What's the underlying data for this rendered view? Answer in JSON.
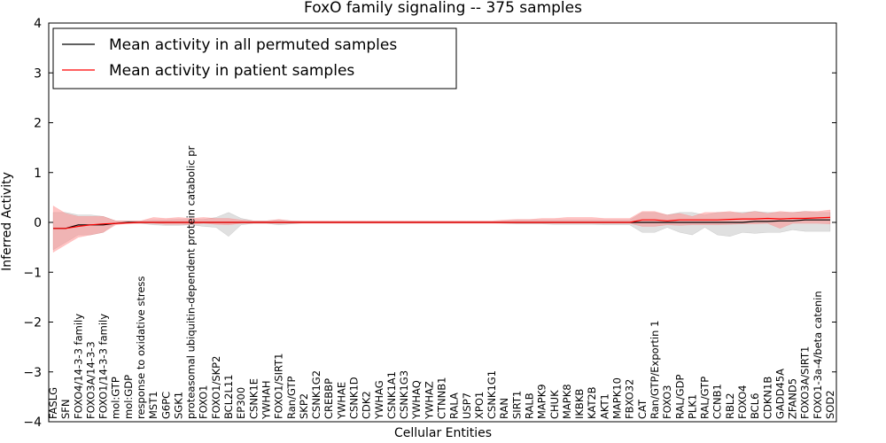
{
  "chart_data": {
    "type": "line",
    "title": "FoxO family signaling -- 375 samples",
    "xlabel": "Cellular Entities",
    "ylabel": "Inferred Activity",
    "ylim": [
      -4,
      4
    ],
    "yticks": [
      "−4",
      "−3",
      "−2",
      "−1",
      "0",
      "1",
      "2",
      "3",
      "4"
    ],
    "legend_position": "top-left",
    "grid": false,
    "categories": [
      "FASLG",
      "SFN",
      "FOXO4/14-3-3 family",
      "FOXO3A/14-3-3",
      "FOXO1/14-3-3 family",
      "mol:GTP",
      "mol:GDP",
      "response to oxidative stress",
      "MST1",
      "G6PC",
      "SGK1",
      "proteasomal ubiquitin-dependent protein catabolic pr",
      "FOXO1",
      "FOXO1/SKP2",
      "BCL2L11",
      "EP300",
      "CSNK1E",
      "YWHAH",
      "FOXO1/SIRT1",
      "Ran/GTP",
      "SKP2",
      "CSNK1G2",
      "CREBBP",
      "YWHAE",
      "CSNK1D",
      "CDK2",
      "YWHAG",
      "CSNK1A1",
      "CSNK1G3",
      "YWHAQ",
      "YWHAZ",
      "CTNNB1",
      "RALA",
      "USP7",
      "XPO1",
      "CSNK1G1",
      "RAN",
      "SIRT1",
      "RALB",
      "MAPK9",
      "CHUK",
      "MAPK8",
      "IKBKB",
      "KAT2B",
      "AKT1",
      "MAPK10",
      "FBXO32",
      "CAT",
      "Ran/GTP/Exportin 1",
      "FOXO3",
      "RAL/GDP",
      "PLK1",
      "RAL/GTP",
      "CCNB1",
      "RBL2",
      "FOXO4",
      "BCL6",
      "CDKN1B",
      "GADD45A",
      "ZFAND5",
      "FOXO3A/SIRT1",
      "FOXO1-3a-4/beta catenin",
      "SOD2"
    ],
    "series": [
      {
        "name": "Mean activity in all permuted samples",
        "color": "#000000",
        "band_color": "#bbbbbb",
        "values": [
          -0.12,
          -0.12,
          -0.05,
          -0.05,
          -0.05,
          -0.02,
          0.0,
          0.0,
          0.0,
          0.0,
          0.0,
          0.0,
          0.0,
          0.0,
          0.0,
          0.0,
          0.0,
          0.0,
          0.0,
          0.0,
          0.0,
          0.0,
          0.0,
          0.0,
          0.0,
          0.0,
          0.0,
          0.0,
          0.0,
          0.0,
          0.0,
          0.0,
          0.0,
          0.0,
          0.0,
          0.0,
          0.0,
          0.0,
          0.0,
          0.0,
          0.0,
          0.0,
          0.0,
          0.0,
          0.0,
          0.0,
          0.0,
          0.0,
          0.0,
          0.0,
          0.0,
          0.0,
          0.0,
          0.0,
          0.0,
          0.0,
          0.02,
          0.02,
          0.03,
          0.03,
          0.05,
          0.05,
          0.05
        ],
        "lower": [
          -0.55,
          -0.4,
          -0.25,
          -0.25,
          -0.2,
          -0.02,
          -0.02,
          -0.02,
          -0.05,
          -0.06,
          -0.06,
          -0.05,
          -0.08,
          -0.1,
          -0.28,
          -0.05,
          -0.02,
          -0.02,
          -0.05,
          -0.03,
          -0.01,
          -0.01,
          -0.01,
          -0.01,
          -0.01,
          -0.01,
          -0.01,
          -0.01,
          -0.01,
          -0.01,
          -0.01,
          -0.01,
          -0.01,
          -0.01,
          -0.01,
          -0.01,
          -0.02,
          -0.03,
          -0.03,
          -0.03,
          -0.04,
          -0.04,
          -0.04,
          -0.04,
          -0.05,
          -0.05,
          -0.05,
          -0.2,
          -0.2,
          -0.1,
          -0.2,
          -0.25,
          -0.1,
          -0.25,
          -0.28,
          -0.2,
          -0.22,
          -0.2,
          -0.2,
          -0.15,
          -0.18,
          -0.18,
          -0.18
        ],
        "upper": [
          0.2,
          0.2,
          0.15,
          0.15,
          0.12,
          0.03,
          0.03,
          0.03,
          0.05,
          0.05,
          0.06,
          0.06,
          0.06,
          0.1,
          0.2,
          0.08,
          0.03,
          0.03,
          0.05,
          0.03,
          0.02,
          0.02,
          0.02,
          0.02,
          0.02,
          0.02,
          0.02,
          0.02,
          0.02,
          0.02,
          0.02,
          0.02,
          0.02,
          0.02,
          0.02,
          0.02,
          0.03,
          0.05,
          0.05,
          0.05,
          0.05,
          0.05,
          0.05,
          0.05,
          0.05,
          0.05,
          0.05,
          0.2,
          0.2,
          0.15,
          0.2,
          0.2,
          0.15,
          0.2,
          0.2,
          0.2,
          0.22,
          0.2,
          0.2,
          0.2,
          0.22,
          0.2,
          0.2
        ]
      },
      {
        "name": "Mean activity in patient samples",
        "color": "#ff0000",
        "band_color": "#ff8888",
        "values": [
          -0.12,
          -0.12,
          -0.08,
          -0.05,
          -0.03,
          -0.02,
          -0.01,
          0.0,
          0.0,
          0.0,
          0.0,
          0.0,
          0.0,
          0.0,
          0.0,
          0.0,
          0.0,
          0.0,
          0.0,
          0.0,
          0.0,
          0.0,
          0.0,
          0.0,
          0.0,
          0.0,
          0.0,
          0.0,
          0.0,
          0.0,
          0.0,
          0.0,
          0.0,
          0.0,
          0.0,
          0.0,
          0.0,
          0.0,
          0.0,
          0.0,
          0.0,
          0.0,
          0.0,
          0.0,
          0.0,
          0.0,
          0.0,
          0.05,
          0.05,
          0.03,
          0.05,
          0.05,
          0.05,
          0.05,
          0.06,
          0.07,
          0.07,
          0.08,
          0.07,
          0.08,
          0.08,
          0.09,
          0.1
        ],
        "lower": [
          -0.6,
          -0.45,
          -0.3,
          -0.25,
          -0.2,
          -0.05,
          -0.02,
          -0.02,
          -0.02,
          -0.04,
          -0.04,
          -0.04,
          -0.02,
          -0.04,
          -0.05,
          -0.02,
          -0.02,
          -0.02,
          -0.02,
          -0.02,
          -0.02,
          -0.02,
          -0.02,
          -0.02,
          -0.02,
          -0.02,
          -0.02,
          -0.02,
          -0.02,
          -0.02,
          -0.02,
          -0.02,
          -0.02,
          -0.02,
          -0.02,
          -0.02,
          -0.02,
          -0.02,
          -0.02,
          -0.02,
          -0.02,
          -0.02,
          -0.02,
          -0.02,
          -0.02,
          -0.02,
          -0.02,
          -0.08,
          -0.08,
          -0.05,
          -0.06,
          -0.05,
          -0.05,
          -0.05,
          -0.04,
          -0.03,
          -0.03,
          -0.02,
          -0.12,
          -0.02,
          -0.02,
          -0.02,
          -0.03
        ],
        "upper": [
          0.33,
          0.18,
          0.12,
          0.12,
          0.12,
          0.03,
          0.03,
          0.03,
          0.1,
          0.08,
          0.1,
          0.08,
          0.1,
          0.08,
          0.08,
          0.05,
          0.03,
          0.03,
          0.06,
          0.03,
          0.03,
          0.03,
          0.03,
          0.03,
          0.03,
          0.03,
          0.03,
          0.03,
          0.03,
          0.03,
          0.03,
          0.03,
          0.03,
          0.03,
          0.03,
          0.03,
          0.05,
          0.06,
          0.06,
          0.08,
          0.08,
          0.1,
          0.1,
          0.1,
          0.08,
          0.08,
          0.08,
          0.22,
          0.22,
          0.15,
          0.18,
          0.12,
          0.2,
          0.2,
          0.22,
          0.18,
          0.22,
          0.18,
          0.22,
          0.2,
          0.22,
          0.22,
          0.25
        ]
      }
    ]
  }
}
